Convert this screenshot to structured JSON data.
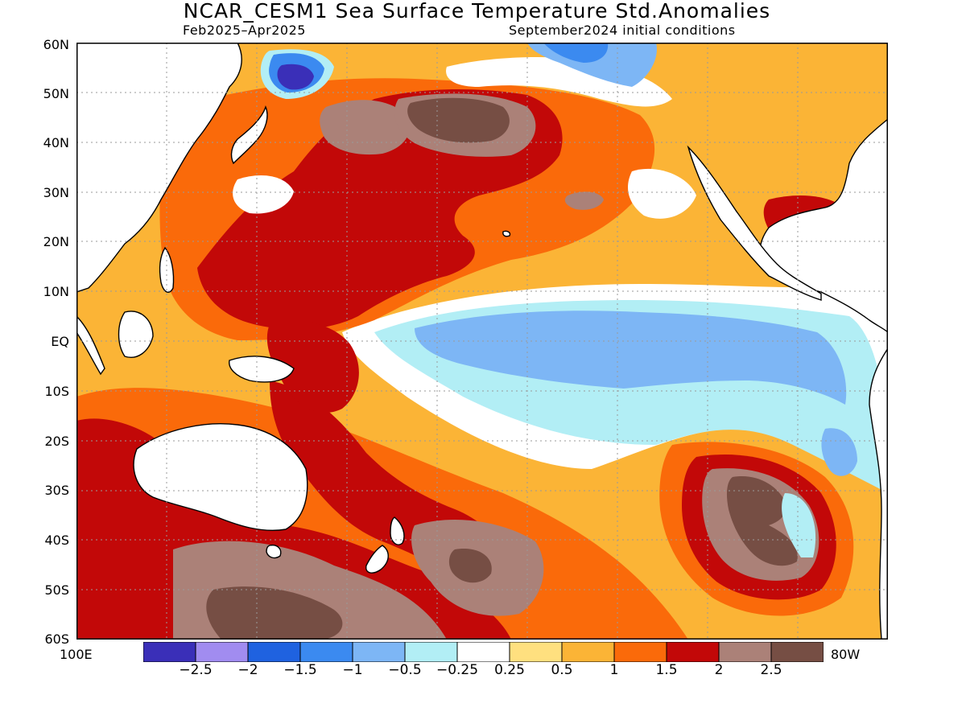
{
  "title": "NCAR_CESM1 Sea Surface Temperature Std.Anomalies",
  "subtitle_left": "Feb2025–Apr2025",
  "subtitle_right": "September2024 initial conditions",
  "lat_labels": [
    "60N",
    "50N",
    "40N",
    "30N",
    "20N",
    "10N",
    "EQ",
    "10S",
    "20S",
    "30S",
    "40S",
    "50S",
    "60S"
  ],
  "lon_left_label": "100E",
  "lon_right_label": "80W",
  "legend": {
    "colors": [
      "#3a2fb8",
      "#a18cf0",
      "#1f62e0",
      "#3b8af0",
      "#7db6f5",
      "#b2eef5",
      "#ffffff",
      "#ffe07f",
      "#fbb436",
      "#fa6a0a",
      "#c20808",
      "#ab8178",
      "#764e44"
    ],
    "labels": [
      "−2.5",
      "−2",
      "−1.5",
      "−1",
      "−0.5",
      "−0.25",
      "0.25",
      "0.5",
      "1",
      "1.5",
      "2",
      "2.5"
    ]
  },
  "map_data": {
    "region": "Pacific Ocean",
    "lon_range": [
      "100E",
      "80W"
    ],
    "lat_range": [
      "60S",
      "60N"
    ],
    "units": "Std.Anomalies",
    "grid": true
  }
}
